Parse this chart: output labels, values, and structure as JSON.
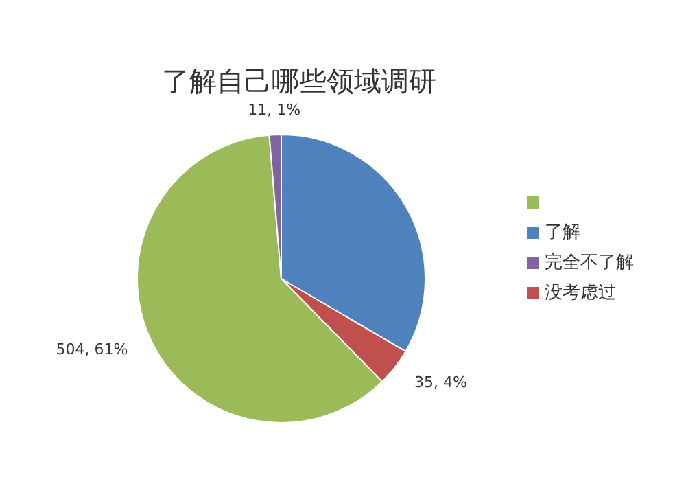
{
  "chart_data": {
    "type": "pie",
    "title": "了解自己哪些领域调研",
    "categories": [
      "了解",
      "没考虑过",
      null,
      "完全不了解"
    ],
    "values": [
      276,
      35,
      504,
      11
    ],
    "colors": [
      "#4f81bd",
      "#c0504d",
      "#9bbb59",
      "#8064a2"
    ],
    "value_labels": [
      null,
      "35, 4%",
      "504, 61%",
      "11, 1%"
    ],
    "legend": "right"
  }
}
